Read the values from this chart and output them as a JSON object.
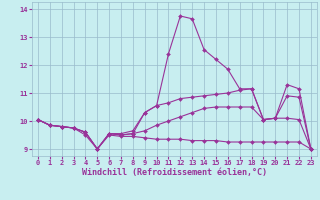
{
  "title": "",
  "xlabel": "Windchill (Refroidissement éolien,°C)",
  "ylabel": "",
  "background_color": "#c8eef0",
  "line_color": "#993399",
  "xlim": [
    -0.5,
    23.5
  ],
  "ylim": [
    8.75,
    14.25
  ],
  "yticks": [
    9,
    10,
    11,
    12,
    13,
    14
  ],
  "xticks": [
    0,
    1,
    2,
    3,
    4,
    5,
    6,
    7,
    8,
    9,
    10,
    11,
    12,
    13,
    14,
    15,
    16,
    17,
    18,
    19,
    20,
    21,
    22,
    23
  ],
  "lines": [
    {
      "x": [
        0,
        1,
        2,
        3,
        4,
        5,
        6,
        7,
        8,
        9,
        10,
        11,
        12,
        13,
        14,
        15,
        16,
        17,
        18,
        19,
        20,
        21,
        22,
        23
      ],
      "y": [
        10.05,
        9.85,
        9.8,
        9.75,
        9.6,
        9.0,
        9.55,
        9.5,
        9.55,
        10.3,
        10.55,
        12.4,
        13.75,
        13.65,
        12.55,
        12.2,
        11.85,
        11.15,
        11.15,
        10.05,
        10.1,
        10.9,
        10.85,
        9.0
      ]
    },
    {
      "x": [
        0,
        1,
        2,
        3,
        4,
        5,
        6,
        7,
        8,
        9,
        10,
        11,
        12,
        13,
        14,
        15,
        16,
        17,
        18,
        19,
        20,
        21,
        22,
        23
      ],
      "y": [
        10.05,
        9.85,
        9.8,
        9.75,
        9.6,
        9.0,
        9.55,
        9.55,
        9.65,
        10.3,
        10.55,
        10.65,
        10.8,
        10.85,
        10.9,
        10.95,
        11.0,
        11.1,
        11.15,
        10.05,
        10.1,
        11.3,
        11.15,
        9.0
      ]
    },
    {
      "x": [
        0,
        1,
        2,
        3,
        4,
        5,
        6,
        7,
        8,
        9,
        10,
        11,
        12,
        13,
        14,
        15,
        16,
        17,
        18,
        19,
        20,
        21,
        22,
        23
      ],
      "y": [
        10.05,
        9.85,
        9.8,
        9.75,
        9.6,
        9.0,
        9.55,
        9.5,
        9.55,
        9.65,
        9.85,
        10.0,
        10.15,
        10.3,
        10.45,
        10.5,
        10.5,
        10.5,
        10.5,
        10.05,
        10.1,
        10.1,
        10.05,
        9.0
      ]
    },
    {
      "x": [
        0,
        1,
        2,
        3,
        4,
        5,
        6,
        7,
        8,
        9,
        10,
        11,
        12,
        13,
        14,
        15,
        16,
        17,
        18,
        19,
        20,
        21,
        22,
        23
      ],
      "y": [
        10.05,
        9.85,
        9.8,
        9.75,
        9.5,
        9.0,
        9.5,
        9.45,
        9.45,
        9.4,
        9.35,
        9.35,
        9.35,
        9.3,
        9.3,
        9.3,
        9.25,
        9.25,
        9.25,
        9.25,
        9.25,
        9.25,
        9.25,
        9.0
      ]
    }
  ],
  "marker": "D",
  "markersize": 2.0,
  "linewidth": 0.8,
  "grid_color": "#99bbcc",
  "tick_fontsize": 5.0,
  "xlabel_fontsize": 6.0
}
